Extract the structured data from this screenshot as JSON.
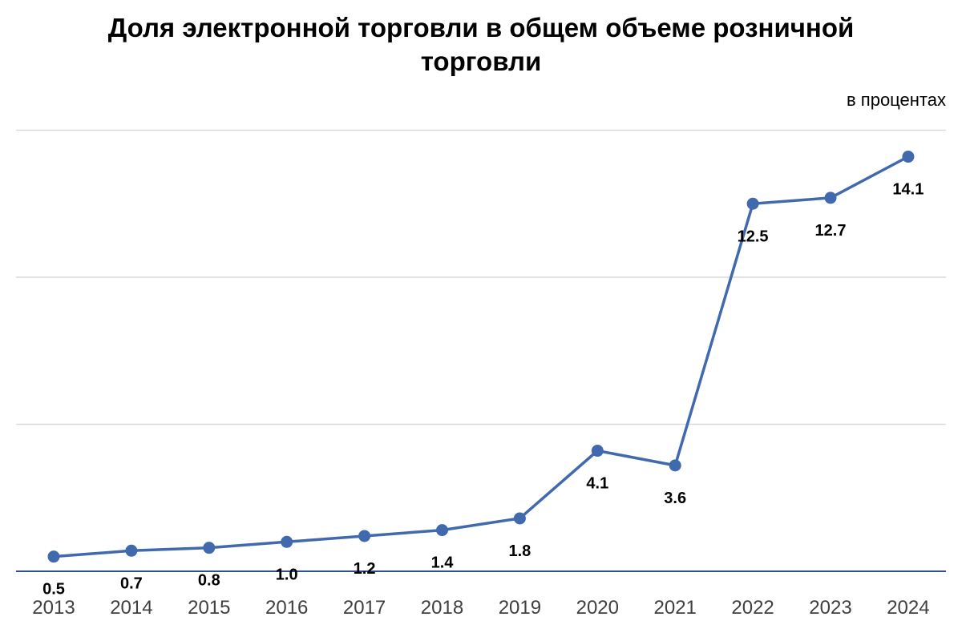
{
  "chart_data": {
    "type": "line",
    "title": "Доля электронной торговли в общем объеме розничной торговли",
    "unit": "в процентах",
    "categories": [
      "2013",
      "2014",
      "2015",
      "2016",
      "2017",
      "2018",
      "2019",
      "2020",
      "2021",
      "2022",
      "2023",
      "2024"
    ],
    "series": [
      {
        "values": [
          0.5,
          0.7,
          0.8,
          1.0,
          1.2,
          1.4,
          1.8,
          4.1,
          3.6,
          12.5,
          12.7,
          14.1
        ],
        "labels": [
          "0.5",
          "0.7",
          "0.8",
          "1.0",
          "1.2",
          "1.4",
          "1.8",
          "4.1",
          "3.6",
          "12.5",
          "12.7",
          "14.1"
        ],
        "color": "#4169AE"
      }
    ],
    "ylim": [
      0,
      15
    ],
    "grid": true,
    "legend": "none",
    "colors": {
      "line": "#4169AE",
      "axis": "#2F4F8F",
      "grid": "#D9D9D9"
    }
  }
}
